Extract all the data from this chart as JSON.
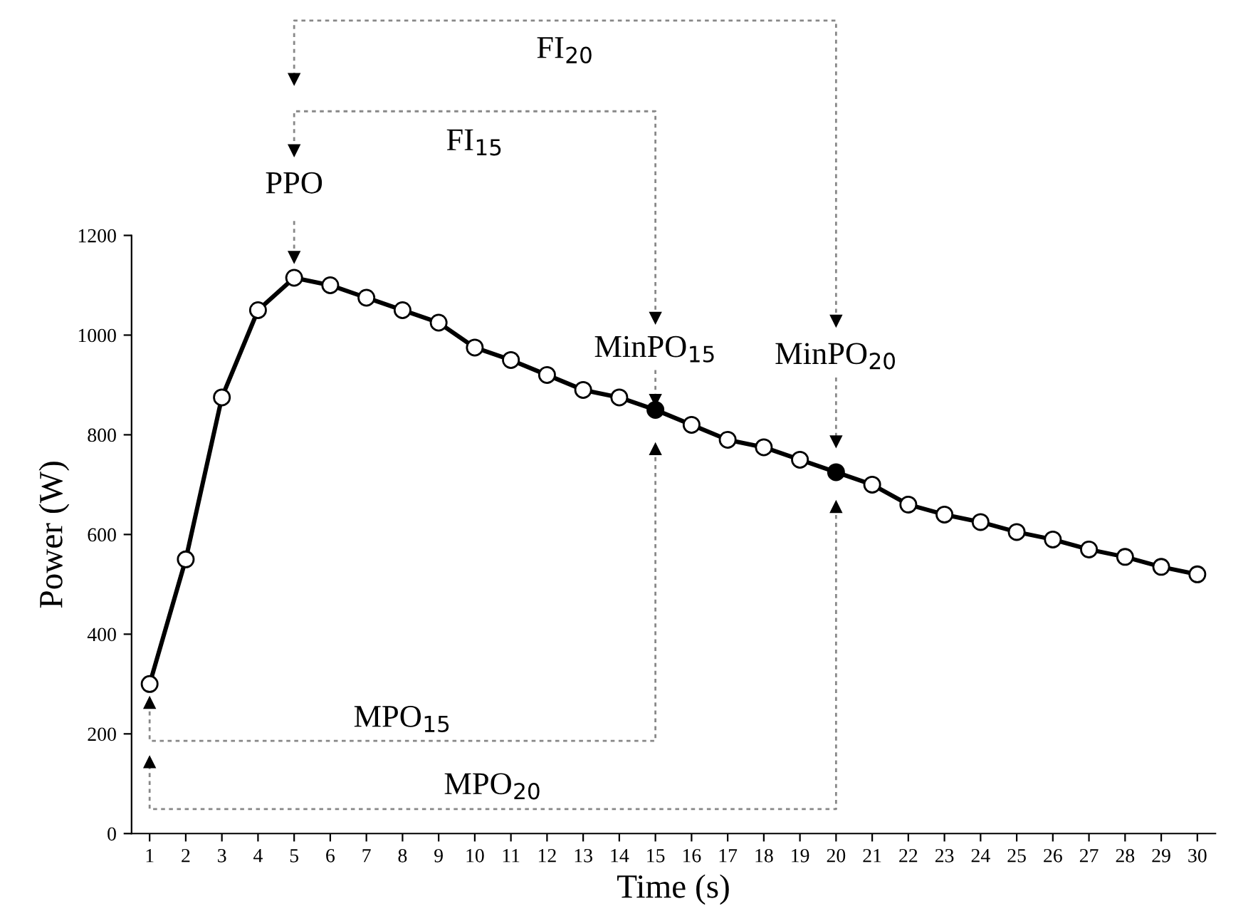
{
  "chart_data": {
    "type": "line",
    "xlabel": "Time (s)",
    "ylabel": "Power (W)",
    "x": [
      1,
      2,
      3,
      4,
      5,
      6,
      7,
      8,
      9,
      10,
      11,
      12,
      13,
      14,
      15,
      16,
      17,
      18,
      19,
      20,
      21,
      22,
      23,
      24,
      25,
      26,
      27,
      28,
      29,
      30
    ],
    "series": [
      {
        "color": "#000000",
        "values": [
          300,
          550,
          875,
          1050,
          1115,
          1100,
          1075,
          1050,
          1025,
          975,
          950,
          920,
          890,
          875,
          850,
          820,
          790,
          775,
          750,
          725,
          700,
          660,
          640,
          625,
          605,
          590,
          570,
          555,
          535,
          520
        ],
        "colors": [
          "#ffffff",
          "#ffffff",
          "#ffffff",
          "#ffffff",
          "#ffffff",
          "#ffffff",
          "#ffffff",
          "#ffffff",
          "#ffffff",
          "#ffffff",
          "#ffffff",
          "#ffffff",
          "#ffffff",
          "#ffffff",
          "#000000",
          "#ffffff",
          "#ffffff",
          "#ffffff",
          "#ffffff",
          "#000000",
          "#ffffff",
          "#ffffff",
          "#ffffff",
          "#ffffff",
          "#ffffff",
          "#ffffff",
          "#ffffff",
          "#ffffff",
          "#ffffff",
          "#ffffff"
        ]
      }
    ],
    "annotations": [
      "PPO",
      "MinPO$_{15}$",
      "MinPO$_{20}$",
      "FI$_{15}$",
      "FI$_{20}$",
      "MPO$_{15}$",
      "MPO$_{20}$"
    ],
    "xlim": [
      0.5,
      30.5
    ],
    "ylim": [
      0,
      1200
    ],
    "xticks": [
      1,
      2,
      3,
      4,
      5,
      6,
      7,
      8,
      9,
      10,
      11,
      12,
      13,
      14,
      15,
      16,
      17,
      18,
      19,
      20,
      21,
      22,
      23,
      24,
      25,
      26,
      27,
      28,
      29,
      30
    ],
    "yticks": [
      0,
      200,
      400,
      600,
      800,
      1000,
      1200
    ],
    "legend": false,
    "marker": "circle",
    "line_style": "solid"
  }
}
